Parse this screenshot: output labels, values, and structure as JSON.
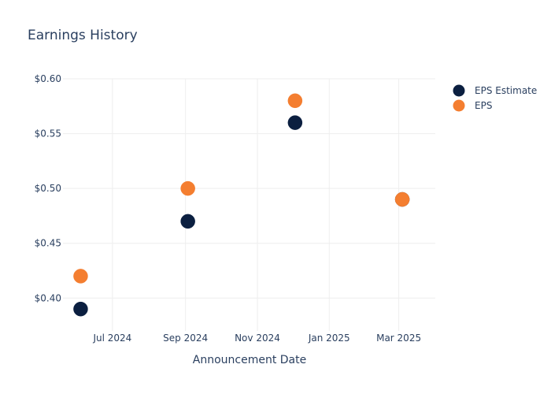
{
  "chart_data": {
    "type": "scatter",
    "title": "Earnings History",
    "xlabel": "Announcement Date",
    "ylabel": "",
    "x_ticks": [
      {
        "date": "2024-07-01",
        "label": "Jul 2024"
      },
      {
        "date": "2024-09-01",
        "label": "Sep 2024"
      },
      {
        "date": "2024-11-01",
        "label": "Nov 2024"
      },
      {
        "date": "2025-01-01",
        "label": "Jan 2025"
      },
      {
        "date": "2025-03-01",
        "label": "Mar 2025"
      }
    ],
    "y_ticks": [
      {
        "value": 0.4,
        "label": "$0.40"
      },
      {
        "value": 0.45,
        "label": "$0.45"
      },
      {
        "value": 0.5,
        "label": "$0.50"
      },
      {
        "value": 0.55,
        "label": "$0.55"
      },
      {
        "value": 0.6,
        "label": "$0.60"
      }
    ],
    "xlim": [
      "2024-05-20",
      "2025-04-01"
    ],
    "ylim": [
      0.37,
      0.6
    ],
    "grid": true,
    "legend_position": "top-right",
    "x": [
      "2024-06-04",
      "2024-09-03",
      "2024-12-03",
      "2025-03-04"
    ],
    "series": [
      {
        "name": "EPS Estimate",
        "color": "#0b1f40",
        "values": [
          0.39,
          0.47,
          0.56,
          0.49
        ]
      },
      {
        "name": "EPS",
        "color": "#f47e30",
        "values": [
          0.42,
          0.5,
          0.58,
          0.49
        ]
      }
    ]
  }
}
